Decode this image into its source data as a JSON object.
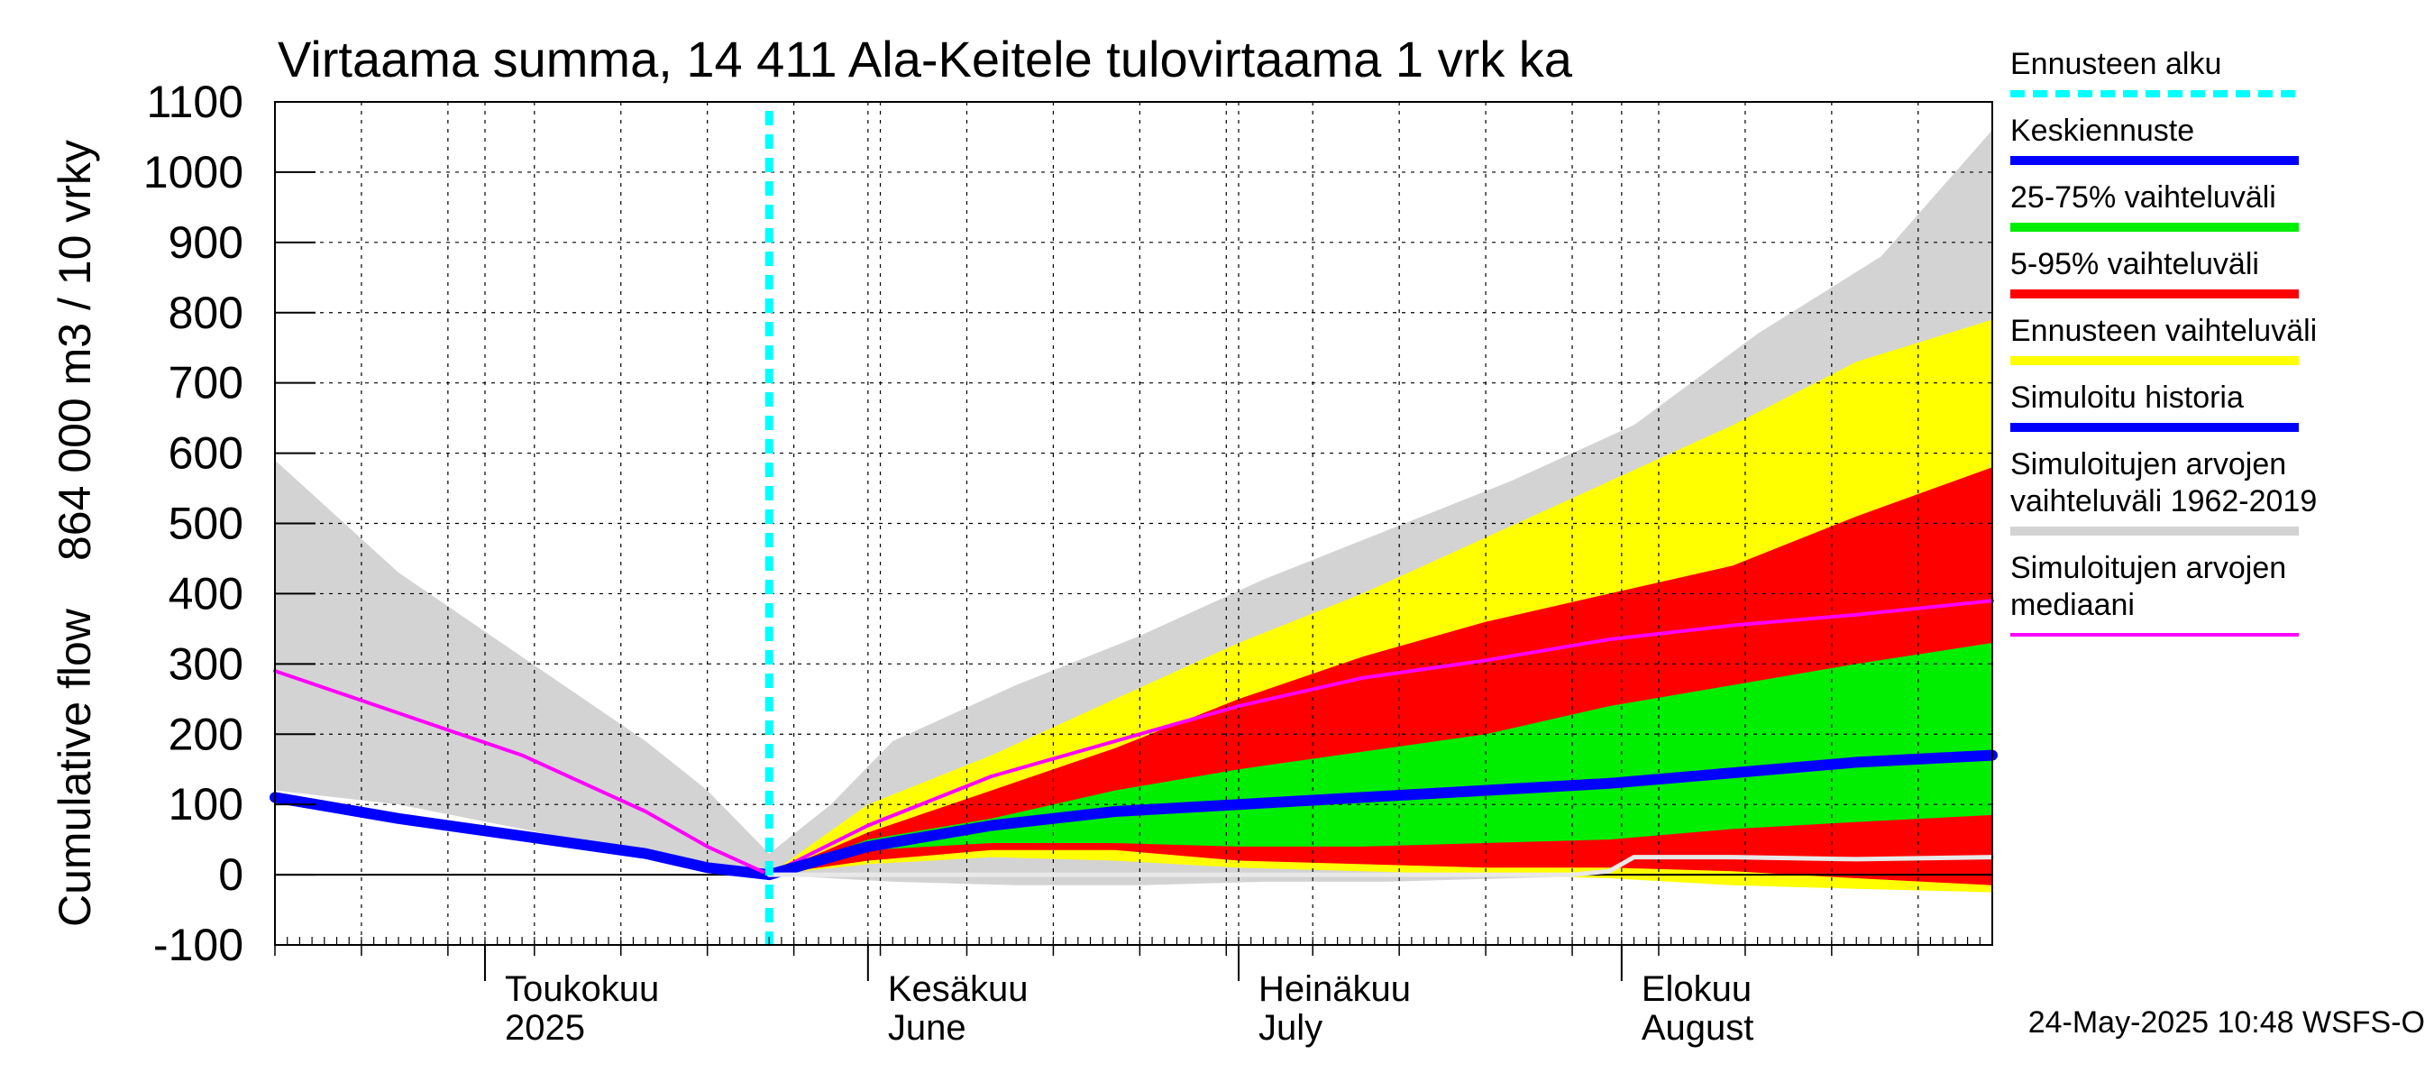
{
  "chart_data": {
    "type": "area",
    "title": "Virtaama summa, 14 411 Ala-Keitele tulovirtaama 1 vrk ka",
    "ylabel_parts": [
      "Cumulative flow",
      "864 000 m3 / 10 vrky"
    ],
    "ylim": [
      -100,
      1100
    ],
    "yticks": [
      -100,
      0,
      100,
      200,
      300,
      400,
      500,
      600,
      700,
      800,
      900,
      1000,
      1100
    ],
    "ytick_labels": [
      "-100",
      "0",
      "100",
      "200",
      "300",
      "400",
      "500",
      "600",
      "700",
      "800",
      "900",
      "1000",
      "1100"
    ],
    "x_range": [
      "2025-04-14",
      "2025-08-31"
    ],
    "month_ticks": [
      {
        "date": "2025-05-01",
        "line1": "Toukokuu",
        "line2": "2025"
      },
      {
        "date": "2025-06-01",
        "line1": "Kesäkuu",
        "line2": "June"
      },
      {
        "date": "2025-07-01",
        "line1": "Heinäkuu",
        "line2": "July"
      },
      {
        "date": "2025-08-01",
        "line1": "Elokuu",
        "line2": "August"
      }
    ],
    "forecast_start": "2025-05-24",
    "grid": true,
    "series": [
      {
        "name": "Simuloitujen arvojen vaihteluväli 1962-2019",
        "kind": "band",
        "color": "#d3d3d3",
        "x": [
          "2025-04-14",
          "2025-04-24",
          "2025-05-04",
          "2025-05-14",
          "2025-05-19",
          "2025-05-24",
          "2025-05-29",
          "2025-06-03",
          "2025-06-13",
          "2025-06-23",
          "2025-07-03",
          "2025-07-13",
          "2025-07-23",
          "2025-08-02",
          "2025-08-12",
          "2025-08-22",
          "2025-08-31"
        ],
        "lower": [
          120,
          100,
          65,
          30,
          15,
          0,
          -5,
          -10,
          -15,
          -15,
          -10,
          -10,
          -5,
          0,
          5,
          5,
          0
        ],
        "upper": [
          590,
          430,
          310,
          190,
          120,
          30,
          100,
          190,
          270,
          340,
          420,
          490,
          560,
          640,
          770,
          880,
          1060
        ]
      },
      {
        "name": "Ennusteen vaihteluväli",
        "kind": "band",
        "color": "#ffff00",
        "x": [
          "2025-05-24",
          "2025-06-01",
          "2025-06-11",
          "2025-06-21",
          "2025-07-01",
          "2025-07-11",
          "2025-07-21",
          "2025-07-31",
          "2025-08-10",
          "2025-08-20",
          "2025-08-31"
        ],
        "lower": [
          0,
          15,
          25,
          20,
          10,
          5,
          0,
          -5,
          -15,
          -20,
          -25
        ],
        "upper": [
          0,
          100,
          170,
          250,
          330,
          400,
          480,
          560,
          640,
          730,
          790
        ]
      },
      {
        "name": "5-95% vaihteluväli",
        "kind": "band",
        "color": "#ff0000",
        "x": [
          "2025-05-24",
          "2025-06-01",
          "2025-06-11",
          "2025-06-21",
          "2025-07-01",
          "2025-07-11",
          "2025-07-21",
          "2025-07-31",
          "2025-08-10",
          "2025-08-20",
          "2025-08-31"
        ],
        "lower": [
          0,
          20,
          35,
          35,
          20,
          15,
          10,
          10,
          5,
          -5,
          -15
        ],
        "upper": [
          0,
          60,
          120,
          180,
          250,
          310,
          360,
          400,
          440,
          510,
          580
        ]
      },
      {
        "name": "25-75% vaihteluväli",
        "kind": "band",
        "color": "#00ee00",
        "x": [
          "2025-05-24",
          "2025-06-01",
          "2025-06-11",
          "2025-06-21",
          "2025-07-01",
          "2025-07-11",
          "2025-07-21",
          "2025-07-31",
          "2025-08-10",
          "2025-08-20",
          "2025-08-31"
        ],
        "lower": [
          0,
          35,
          45,
          45,
          40,
          40,
          45,
          50,
          65,
          75,
          85
        ],
        "upper": [
          0,
          50,
          80,
          120,
          150,
          175,
          200,
          240,
          270,
          300,
          330
        ]
      },
      {
        "name": "Simuloitu historia",
        "kind": "line",
        "color": "#0000ff",
        "width": 12,
        "x": [
          "2025-04-14",
          "2025-04-24",
          "2025-05-04",
          "2025-05-14",
          "2025-05-19",
          "2025-05-24"
        ],
        "y": [
          110,
          80,
          55,
          30,
          10,
          0
        ]
      },
      {
        "name": "Simuloitujen arvojen mediaani",
        "kind": "line",
        "color": "#ff00ff",
        "width": 4,
        "x": [
          "2025-04-14",
          "2025-04-24",
          "2025-05-04",
          "2025-05-14",
          "2025-05-19",
          "2025-05-24",
          "2025-06-01",
          "2025-06-11",
          "2025-06-21",
          "2025-07-01",
          "2025-07-11",
          "2025-07-21",
          "2025-07-31",
          "2025-08-10",
          "2025-08-20",
          "2025-08-31"
        ],
        "y": [
          290,
          230,
          170,
          90,
          40,
          0,
          70,
          140,
          190,
          240,
          280,
          305,
          335,
          355,
          370,
          390
        ]
      },
      {
        "name": "Keskiennuste",
        "kind": "line",
        "color": "#0000ff",
        "width": 12,
        "x": [
          "2025-05-24",
          "2025-06-01",
          "2025-06-11",
          "2025-06-21",
          "2025-07-01",
          "2025-07-11",
          "2025-07-21",
          "2025-07-31",
          "2025-08-10",
          "2025-08-20",
          "2025-08-31"
        ],
        "y": [
          0,
          40,
          70,
          90,
          100,
          110,
          120,
          130,
          145,
          160,
          170
        ]
      },
      {
        "name": "Historical reference",
        "kind": "line",
        "color": "#e8e8e8",
        "width": 5,
        "no_legend": true,
        "x": [
          "2025-05-24",
          "2025-06-03",
          "2025-06-23",
          "2025-07-13",
          "2025-07-28",
          "2025-07-31",
          "2025-08-02",
          "2025-08-10",
          "2025-08-20",
          "2025-08-31"
        ],
        "y": [
          0,
          0,
          0,
          0,
          0,
          5,
          25,
          25,
          22,
          25
        ]
      }
    ]
  },
  "legend": [
    {
      "lines": [
        "Ennusteen alku"
      ],
      "color": "#00ffff",
      "width": 8,
      "dashed": true
    },
    {
      "lines": [
        "Keskiennuste"
      ],
      "color": "#0000ff",
      "width": 10
    },
    {
      "lines": [
        "25-75% vaihteluväli"
      ],
      "color": "#00ee00",
      "width": 10
    },
    {
      "lines": [
        "5-95% vaihteluväli"
      ],
      "color": "#ff0000",
      "width": 10
    },
    {
      "lines": [
        "Ennusteen vaihteluväli"
      ],
      "color": "#ffff00",
      "width": 10
    },
    {
      "lines": [
        "Simuloitu historia"
      ],
      "color": "#0000ff",
      "width": 10
    },
    {
      "lines": [
        "Simuloitujen arvojen",
        "vaihteluväli 1962-2019"
      ],
      "color": "#d3d3d3",
      "width": 10
    },
    {
      "lines": [
        "Simuloitujen arvojen",
        "mediaani"
      ],
      "color": "#ff00ff",
      "width": 4
    }
  ],
  "footer": "24-May-2025 10:48 WSFS-O"
}
